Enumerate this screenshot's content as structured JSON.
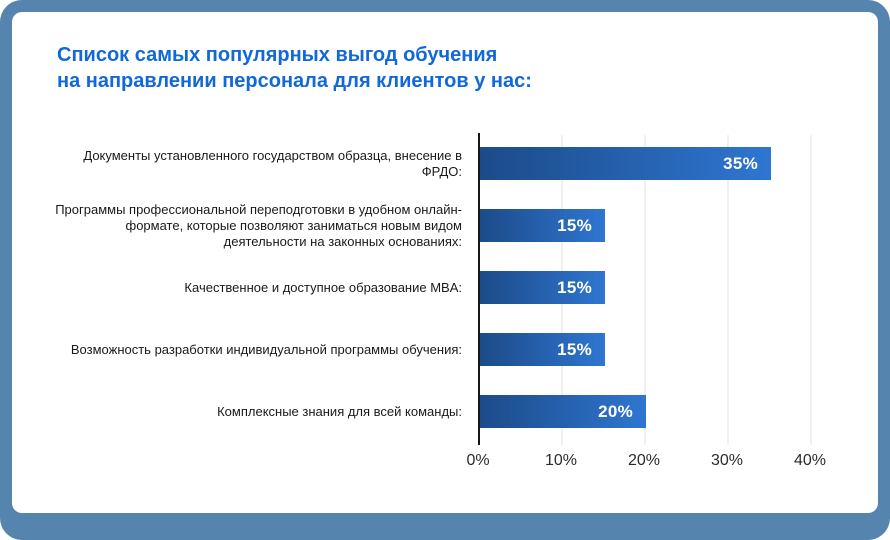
{
  "frame": {
    "outer_bg": "#5584ae",
    "card_bg": "#ffffff"
  },
  "header": {
    "title_line1": "Список самых популярных выгод обучения",
    "title_line2": "на направлении персонала для клиентов у нас:",
    "title_color": "#1168d8"
  },
  "chart_data": {
    "type": "bar",
    "orientation": "horizontal",
    "title": "Список самых популярных выгод обучения на направлении персонала для клиентов у нас:",
    "categories": [
      "Документы установленного государством образца, внесение в ФРДО:",
      "Программы профессиональной переподготовки в удобном онлайн-формате, которые позволяют заниматься новым видом деятельности на законных основаниях:",
      "Качественное и доступное образование MBA:",
      "Возможность разработки индивидуальной программы обучения:",
      "Комплексные знания для всей команды:"
    ],
    "values": [
      35,
      15,
      15,
      15,
      20
    ],
    "value_labels": [
      "35%",
      "15%",
      "15%",
      "15%",
      "20%"
    ],
    "xlabel": "",
    "ylabel": "",
    "xlim": [
      0,
      40
    ],
    "x_ticks": [
      "0%",
      "10%",
      "20%",
      "30%",
      "40%"
    ],
    "grid": "vertical-light-gray",
    "legend": "none",
    "bar_gradient_start": "#1c4b89",
    "bar_gradient_end": "#2f76d1",
    "value_label_color": "#ffffff",
    "axis_line_color": "#161616"
  }
}
